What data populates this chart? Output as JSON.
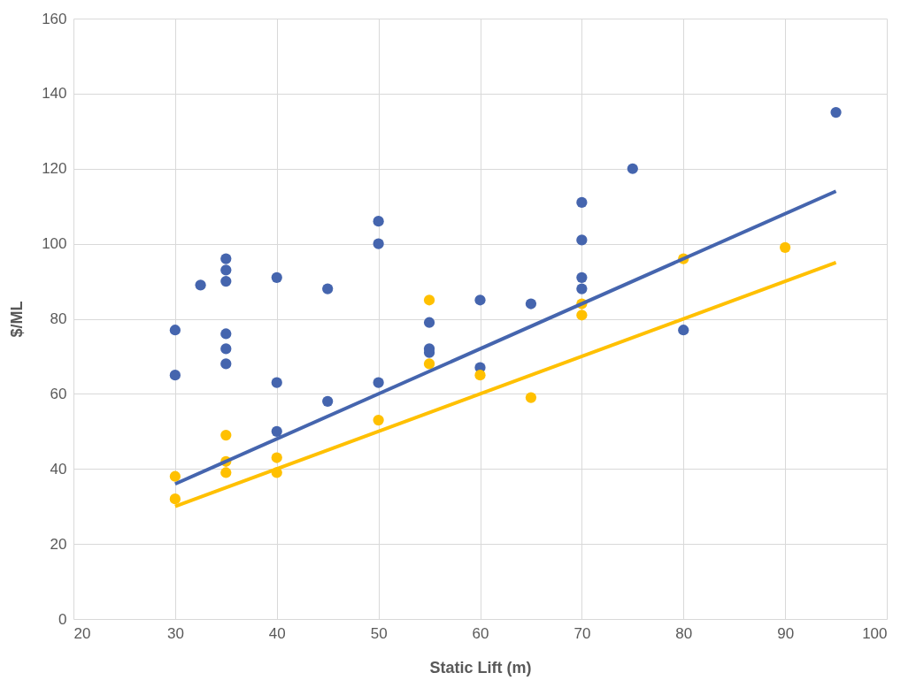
{
  "chart_data": {
    "type": "scatter",
    "xlabel": "Static Lift (m)",
    "ylabel": "$/ML",
    "xlim": [
      20,
      100
    ],
    "ylim": [
      0,
      160
    ],
    "xticks": [
      20,
      30,
      40,
      50,
      60,
      70,
      80,
      90,
      100
    ],
    "yticks": [
      0,
      20,
      40,
      60,
      80,
      100,
      120,
      140,
      160
    ],
    "grid": true,
    "marker": "circle",
    "series": [
      {
        "color": "#4565ae",
        "x": [
          30,
          30,
          32.5,
          35,
          35,
          35,
          35,
          35,
          35,
          40,
          40,
          40,
          45,
          45,
          50,
          50,
          50,
          55,
          55,
          55,
          60,
          60,
          65,
          70,
          70,
          70,
          70,
          75,
          80,
          95
        ],
        "values": [
          77,
          65,
          89,
          96,
          93,
          90,
          76,
          72,
          68,
          91,
          63,
          50,
          88,
          58,
          106,
          100,
          63,
          79,
          72,
          71,
          85,
          67,
          84,
          111,
          101,
          91,
          88,
          120,
          77,
          135
        ]
      },
      {
        "color": "#ffc000",
        "x": [
          30,
          30,
          35,
          35,
          35,
          40,
          40,
          50,
          55,
          55,
          60,
          65,
          70,
          70,
          80,
          90
        ],
        "values": [
          38,
          32,
          49,
          42,
          39,
          43,
          39,
          53,
          85,
          68,
          65,
          59,
          84,
          81,
          96,
          99
        ]
      },
      {
        "type": "line",
        "marker": "none",
        "color": "#4565ae",
        "x": [
          30,
          95
        ],
        "values": [
          36,
          114
        ]
      },
      {
        "type": "line",
        "marker": "none",
        "color": "#ffc000",
        "x": [
          30,
          95
        ],
        "values": [
          30,
          95
        ]
      }
    ]
  }
}
